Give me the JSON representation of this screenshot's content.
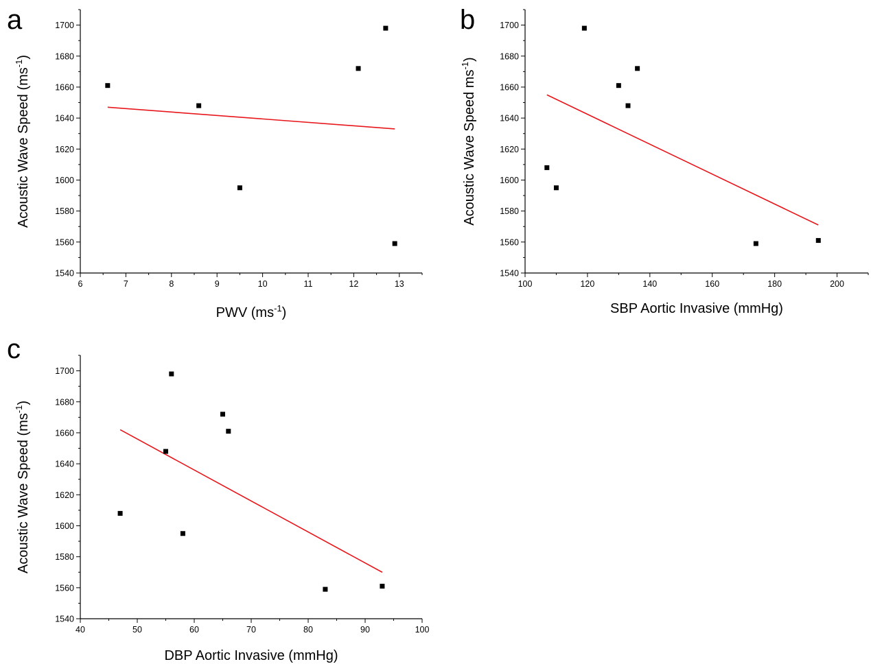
{
  "chart_data": [
    {
      "panel": "a",
      "type": "scatter",
      "xlabel": "PWV (ms",
      "xlabel_sup": "-1",
      "xlabel_end": ")",
      "ylabel": "Acoustic Wave Speed (ms",
      "ylabel_sup": "-1",
      "ylabel_end": ")",
      "xlim": [
        6,
        13.5
      ],
      "ylim": [
        1540,
        1710
      ],
      "xticks": [
        6,
        7,
        8,
        9,
        10,
        11,
        12,
        13
      ],
      "yticks": [
        1540,
        1560,
        1580,
        1600,
        1620,
        1640,
        1660,
        1680,
        1700
      ],
      "points": [
        {
          "x": 6.6,
          "y": 1661
        },
        {
          "x": 8.6,
          "y": 1648
        },
        {
          "x": 9.5,
          "y": 1595
        },
        {
          "x": 12.1,
          "y": 1672
        },
        {
          "x": 12.7,
          "y": 1698
        },
        {
          "x": 12.9,
          "y": 1559
        }
      ],
      "fit_line": {
        "x": [
          6.6,
          12.9
        ],
        "y": [
          1647,
          1633
        ],
        "color": "#e8161b"
      }
    },
    {
      "panel": "b",
      "type": "scatter",
      "xlabel": "SBP Aortic Invasive (mmHg)",
      "xlabel_sup": "",
      "xlabel_end": "",
      "ylabel": "Acoustic Wave Speed ms",
      "ylabel_sup": "-1",
      "ylabel_end": ")",
      "xlim": [
        100,
        210
      ],
      "ylim": [
        1540,
        1710
      ],
      "xticks": [
        100,
        120,
        140,
        160,
        180,
        200
      ],
      "yticks": [
        1540,
        1560,
        1580,
        1600,
        1620,
        1640,
        1660,
        1680,
        1700
      ],
      "points": [
        {
          "x": 107,
          "y": 1608
        },
        {
          "x": 110,
          "y": 1595
        },
        {
          "x": 119,
          "y": 1698
        },
        {
          "x": 130,
          "y": 1661
        },
        {
          "x": 133,
          "y": 1648
        },
        {
          "x": 136,
          "y": 1672
        },
        {
          "x": 174,
          "y": 1559
        },
        {
          "x": 194,
          "y": 1561
        }
      ],
      "fit_line": {
        "x": [
          107,
          194
        ],
        "y": [
          1655,
          1571
        ],
        "color": "#e8161b"
      }
    },
    {
      "panel": "c",
      "type": "scatter",
      "xlabel": "DBP Aortic Invasive (mmHg)",
      "xlabel_sup": "",
      "xlabel_end": "",
      "ylabel": "Acoustic Wave Speed (ms",
      "ylabel_sup": "-1",
      "ylabel_end": ")",
      "xlim": [
        40,
        100
      ],
      "ylim": [
        1540,
        1710
      ],
      "xticks": [
        40,
        50,
        60,
        70,
        80,
        90,
        100
      ],
      "yticks": [
        1540,
        1560,
        1580,
        1600,
        1620,
        1640,
        1660,
        1680,
        1700
      ],
      "points": [
        {
          "x": 47,
          "y": 1608
        },
        {
          "x": 55,
          "y": 1648
        },
        {
          "x": 56,
          "y": 1698
        },
        {
          "x": 58,
          "y": 1595
        },
        {
          "x": 65,
          "y": 1672
        },
        {
          "x": 66,
          "y": 1661
        },
        {
          "x": 83,
          "y": 1559
        },
        {
          "x": 93,
          "y": 1561
        }
      ],
      "fit_line": {
        "x": [
          47,
          93
        ],
        "y": [
          1662,
          1570
        ],
        "color": "#e8161b"
      }
    }
  ]
}
